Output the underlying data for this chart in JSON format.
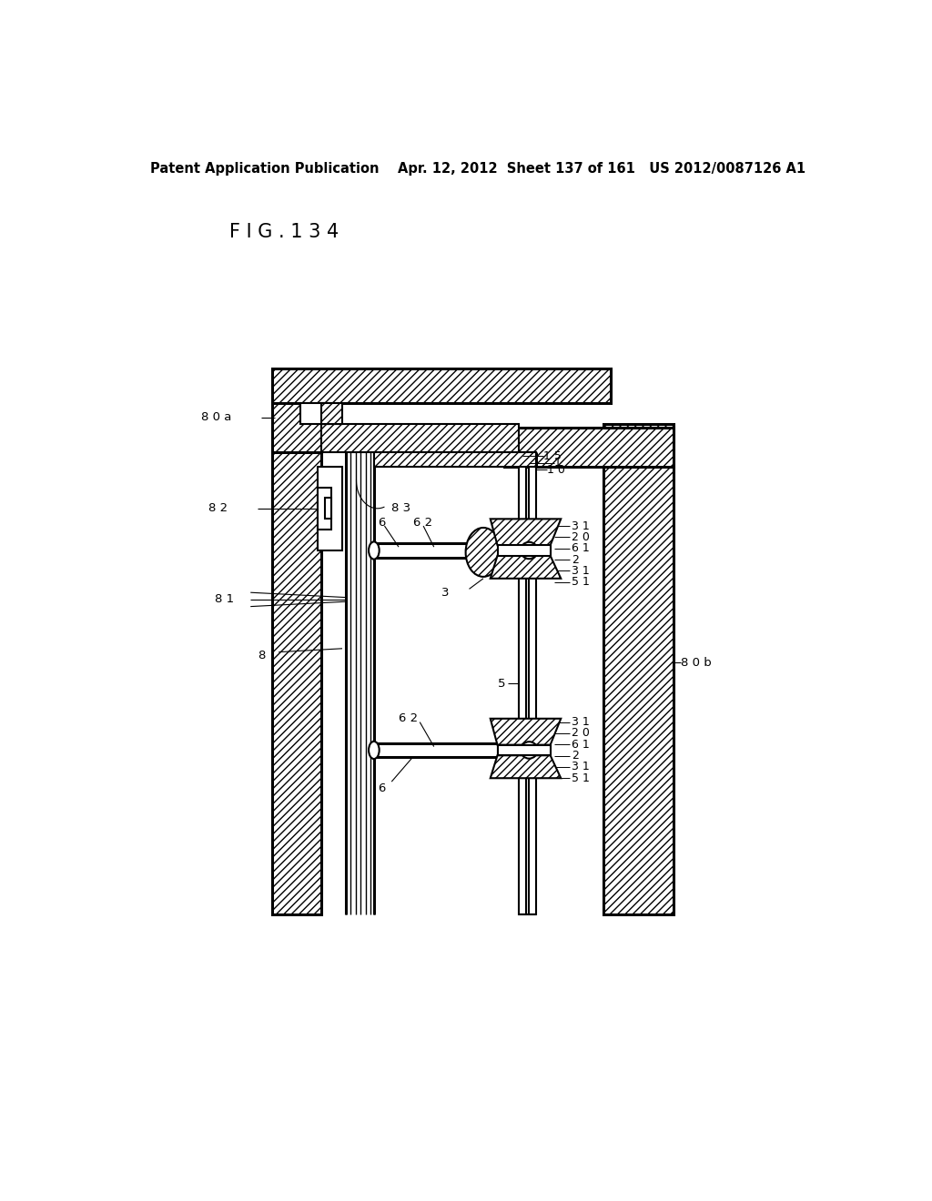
{
  "bg_color": "#ffffff",
  "title_text": "F I G . 1 3 4",
  "header_text": "Patent Application Publication    Apr. 12, 2012  Sheet 137 of 161   US 2012/0087126 A1",
  "header_fontsize": 10.5,
  "title_fontsize": 15,
  "line_color": "#000000",
  "lw": 1.5,
  "lw2": 2.2
}
